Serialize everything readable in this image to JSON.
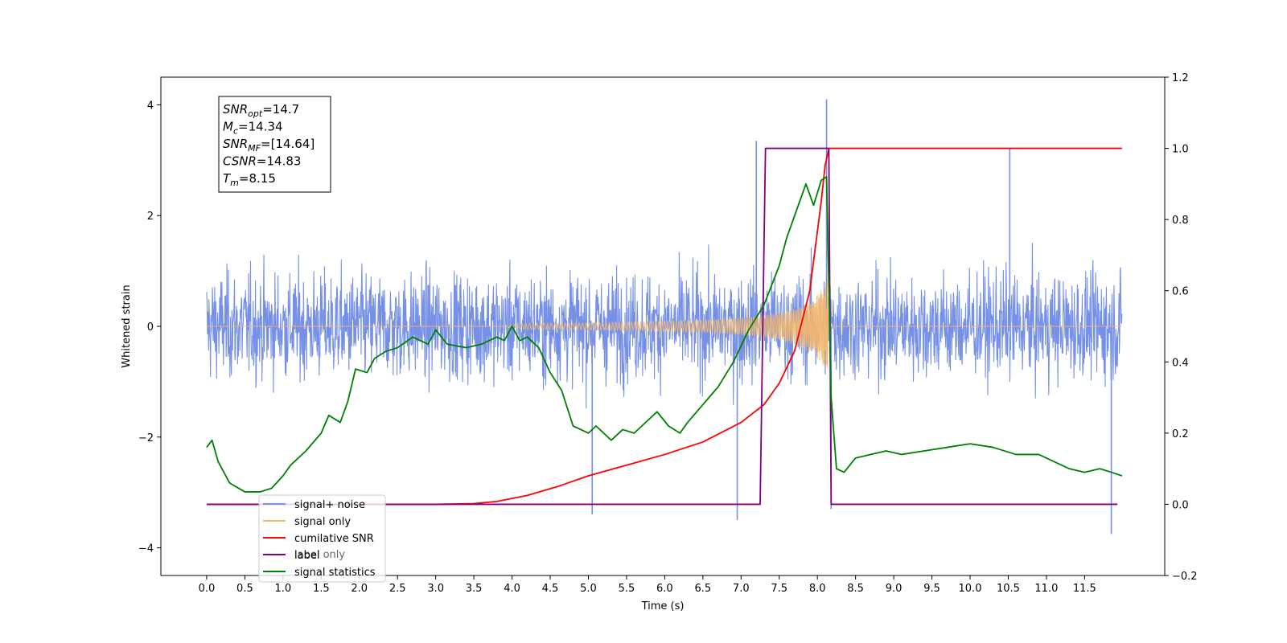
{
  "chart_data": {
    "type": "line",
    "xlabel": "Time (s)",
    "ylabel": "Whitened strain",
    "xlim": [
      -0.6,
      12.55
    ],
    "ylim": [
      -4.5,
      4.5
    ],
    "ylim_right": [
      -0.2,
      1.2
    ],
    "grid": false,
    "legend_position": "lower-left",
    "x_ticks": [
      0.0,
      0.5,
      1.0,
      1.5,
      2.0,
      2.5,
      3.0,
      3.5,
      4.0,
      4.5,
      5.0,
      5.5,
      6.0,
      6.5,
      7.0,
      7.5,
      8.0,
      8.5,
      9.0,
      9.5,
      10.0,
      10.5,
      11.0,
      11.5
    ],
    "x_tick_labels": [
      "0.0",
      "0.5",
      "1.0",
      "1.5",
      "2.0",
      "2.5",
      "3.0",
      "3.5",
      "4.0",
      "4.5",
      "5.0",
      "5.5",
      "6.0",
      "6.5",
      "7.0",
      "7.5",
      "8.0",
      "8.5",
      "9.0",
      "9.5",
      "10.0",
      "10.5",
      "11.0",
      "11.5"
    ],
    "y_ticks_left": [
      4,
      2,
      0,
      -2,
      -4
    ],
    "y_tick_labels_left": [
      "4",
      "2",
      "0",
      "−2",
      "−4"
    ],
    "y_ticks_right": [
      1.2,
      1.0,
      0.8,
      0.6,
      0.4,
      0.2,
      0.0,
      -0.2
    ],
    "y_tick_labels_right": [
      "1.2",
      "1.0",
      "0.8",
      "0.6",
      "0.4",
      "0.2",
      "0.0",
      "−0.2"
    ],
    "annotation": [
      {
        "base": "SNR",
        "sub": "opt",
        "value": "=14.7"
      },
      {
        "base": "M",
        "sub": "c",
        "value": "=14.34"
      },
      {
        "base": "SNR",
        "sub": "MF",
        "value": "=[14.64]"
      },
      {
        "base": "CSNR",
        "sub": "",
        "value": "=14.83"
      },
      {
        "base": "T",
        "sub": "m",
        "value": "=8.15"
      }
    ],
    "series": [
      {
        "name": "signal+ noise",
        "axis": "left",
        "color": "#7590e6",
        "x_start": 0.0,
        "x_end": 11.99,
        "typical_range": [
          -1.3,
          1.3
        ],
        "peaks": [
          [
            8.12,
            4.1
          ],
          [
            10.52,
            3.2
          ],
          [
            7.2,
            3.35
          ],
          [
            11.85,
            -3.75
          ],
          [
            6.95,
            -3.5
          ],
          [
            5.05,
            -3.4
          ],
          [
            8.18,
            -3.3
          ]
        ]
      },
      {
        "name": "signal only",
        "axis": "left",
        "color": "#f5b86a",
        "x_start": 0.0,
        "x_end": 11.99,
        "merger_time": 8.15,
        "peak_amplitude": 1.0
      },
      {
        "name": "cumilative SNR",
        "axis": "right",
        "color": "#ff0000",
        "x": [
          0.0,
          3.0,
          3.5,
          3.8,
          4.2,
          4.6,
          5.0,
          5.5,
          6.0,
          6.5,
          7.0,
          7.3,
          7.5,
          7.7,
          7.9,
          8.05,
          8.1,
          8.15,
          8.5,
          10.0,
          11.99
        ],
        "y": [
          0.0,
          0.0,
          0.002,
          0.008,
          0.025,
          0.05,
          0.08,
          0.11,
          0.14,
          0.175,
          0.23,
          0.28,
          0.34,
          0.43,
          0.6,
          0.85,
          0.95,
          1.0,
          1.0,
          1.0,
          1.0
        ]
      },
      {
        "name": "label",
        "axis": "right",
        "color": "#800080",
        "x": [
          0.0,
          7.25,
          7.32,
          8.15,
          8.18,
          11.93
        ],
        "y": [
          0.0,
          0.0,
          1.0,
          1.0,
          0.0,
          0.0
        ]
      },
      {
        "name": "signal statistics",
        "axis": "right",
        "color": "#008000",
        "x": [
          0.0,
          0.07,
          0.15,
          0.3,
          0.5,
          0.7,
          0.85,
          1.0,
          1.1,
          1.3,
          1.5,
          1.6,
          1.75,
          1.85,
          1.95,
          2.1,
          2.2,
          2.35,
          2.5,
          2.7,
          2.9,
          3.0,
          3.15,
          3.4,
          3.6,
          3.8,
          3.9,
          4.0,
          4.1,
          4.2,
          4.35,
          4.5,
          4.65,
          4.8,
          5.0,
          5.1,
          5.3,
          5.45,
          5.6,
          5.8,
          5.9,
          6.05,
          6.2,
          6.3,
          6.5,
          6.7,
          6.9,
          7.1,
          7.3,
          7.5,
          7.6,
          7.75,
          7.85,
          7.95,
          8.05,
          8.12,
          8.18,
          8.25,
          8.35,
          8.5,
          8.7,
          8.9,
          9.1,
          9.4,
          9.7,
          10.0,
          10.3,
          10.6,
          10.9,
          11.1,
          11.3,
          11.5,
          11.7,
          11.85,
          11.99
        ],
        "y": [
          0.16,
          0.18,
          0.12,
          0.06,
          0.035,
          0.035,
          0.045,
          0.08,
          0.11,
          0.15,
          0.2,
          0.25,
          0.23,
          0.29,
          0.38,
          0.37,
          0.41,
          0.43,
          0.44,
          0.47,
          0.45,
          0.49,
          0.45,
          0.44,
          0.45,
          0.47,
          0.46,
          0.5,
          0.46,
          0.47,
          0.44,
          0.37,
          0.32,
          0.22,
          0.2,
          0.22,
          0.18,
          0.21,
          0.2,
          0.24,
          0.26,
          0.22,
          0.2,
          0.23,
          0.28,
          0.33,
          0.4,
          0.49,
          0.56,
          0.67,
          0.75,
          0.84,
          0.9,
          0.84,
          0.91,
          0.92,
          0.3,
          0.1,
          0.09,
          0.13,
          0.14,
          0.15,
          0.14,
          0.15,
          0.16,
          0.17,
          0.16,
          0.14,
          0.14,
          0.12,
          0.1,
          0.09,
          0.1,
          0.09,
          0.08
        ]
      }
    ],
    "legend": [
      "signal+ noise",
      "signal only",
      "cumilative SNR",
      "label",
      "signal statistics"
    ],
    "legend_overlapped_text": "label only"
  }
}
